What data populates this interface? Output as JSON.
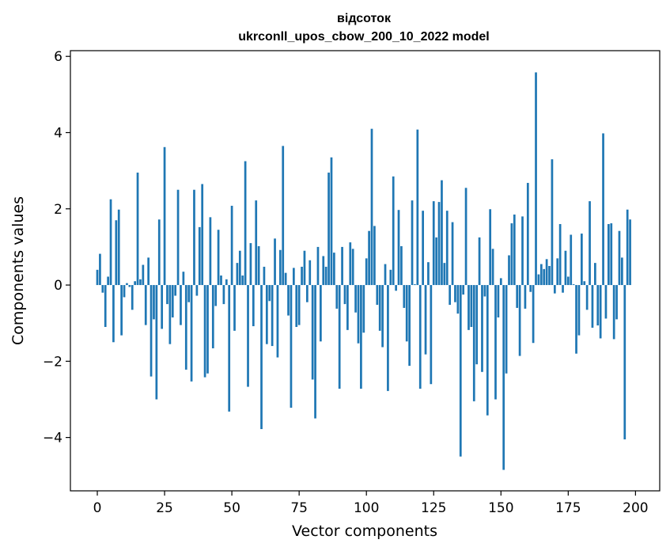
{
  "chart_data": {
    "type": "bar",
    "title_line1": "відсоток",
    "title_line2": "ukrconll_upos_cbow_200_10_2022 model",
    "xlabel": "Vector components",
    "ylabel": "Components values",
    "xlim": [
      -10,
      209
    ],
    "ylim": [
      -5.4,
      6.15
    ],
    "xticks": [
      0,
      25,
      50,
      75,
      100,
      125,
      150,
      175,
      200
    ],
    "yticks": [
      -4,
      -2,
      0,
      2,
      4,
      6
    ],
    "ytick_labels": [
      "−4",
      "−2",
      "0",
      "2",
      "4",
      "6"
    ],
    "bar_color": "#1f77b4",
    "values": [
      0.4,
      0.82,
      -0.2,
      -1.1,
      0.22,
      2.25,
      -1.5,
      1.7,
      1.98,
      -1.32,
      -0.32,
      0.05,
      -0.05,
      -0.65,
      0.1,
      2.95,
      0.15,
      0.53,
      -1.05,
      0.72,
      -2.4,
      -0.9,
      -3.0,
      1.72,
      -1.15,
      3.62,
      -0.5,
      -1.55,
      -0.85,
      -0.28,
      2.5,
      -1.05,
      0.35,
      -2.22,
      -0.45,
      -2.53,
      2.5,
      -0.28,
      1.52,
      2.65,
      -2.42,
      -2.32,
      1.78,
      -1.66,
      -0.55,
      1.45,
      0.25,
      -0.5,
      0.15,
      -3.32,
      2.08,
      -1.2,
      0.58,
      0.9,
      0.25,
      3.25,
      -2.67,
      1.1,
      -1.08,
      2.22,
      1.02,
      -3.78,
      0.48,
      -1.55,
      -0.42,
      -1.6,
      1.22,
      -1.9,
      0.92,
      3.65,
      0.32,
      -0.8,
      -3.22,
      0.45,
      -1.1,
      -1.05,
      0.48,
      0.9,
      -0.45,
      0.65,
      -2.48,
      -3.5,
      1.0,
      -1.48,
      0.76,
      0.48,
      2.95,
      3.35,
      0.85,
      -0.62,
      -2.72,
      1.0,
      -0.5,
      -1.18,
      1.12,
      0.95,
      -0.72,
      -1.53,
      -2.72,
      -1.25,
      0.7,
      1.42,
      4.1,
      1.55,
      -0.52,
      -1.2,
      -1.63,
      0.55,
      -2.78,
      0.4,
      2.85,
      -0.15,
      1.97,
      1.02,
      -0.6,
      -1.48,
      -2.12,
      2.22,
      0.02,
      4.08,
      -2.72,
      1.95,
      -1.82,
      0.6,
      -2.6,
      2.2,
      1.25,
      2.18,
      2.75,
      0.58,
      1.95,
      -0.52,
      1.65,
      -0.45,
      -0.75,
      -4.5,
      -0.25,
      2.55,
      -1.18,
      -1.1,
      -3.05,
      -2.08,
      1.25,
      -2.28,
      -0.3,
      -3.42,
      1.99,
      0.95,
      -3.0,
      -0.85,
      0.18,
      -4.85,
      -2.32,
      0.78,
      1.62,
      1.85,
      -0.6,
      -1.86,
      1.8,
      -0.62,
      2.68,
      -0.18,
      -1.52,
      5.58,
      0.28,
      0.55,
      0.42,
      0.68,
      0.5,
      3.3,
      -0.22,
      0.7,
      1.6,
      -0.2,
      0.9,
      0.22,
      1.32,
      0.02,
      -1.8,
      -1.32,
      1.35,
      0.1,
      -0.65,
      2.2,
      -1.12,
      0.58,
      -1.06,
      -1.4,
      3.98,
      -0.88,
      1.6,
      1.62,
      -1.42,
      -0.9,
      1.42,
      0.72,
      -4.05,
      1.98,
      1.72
    ]
  }
}
